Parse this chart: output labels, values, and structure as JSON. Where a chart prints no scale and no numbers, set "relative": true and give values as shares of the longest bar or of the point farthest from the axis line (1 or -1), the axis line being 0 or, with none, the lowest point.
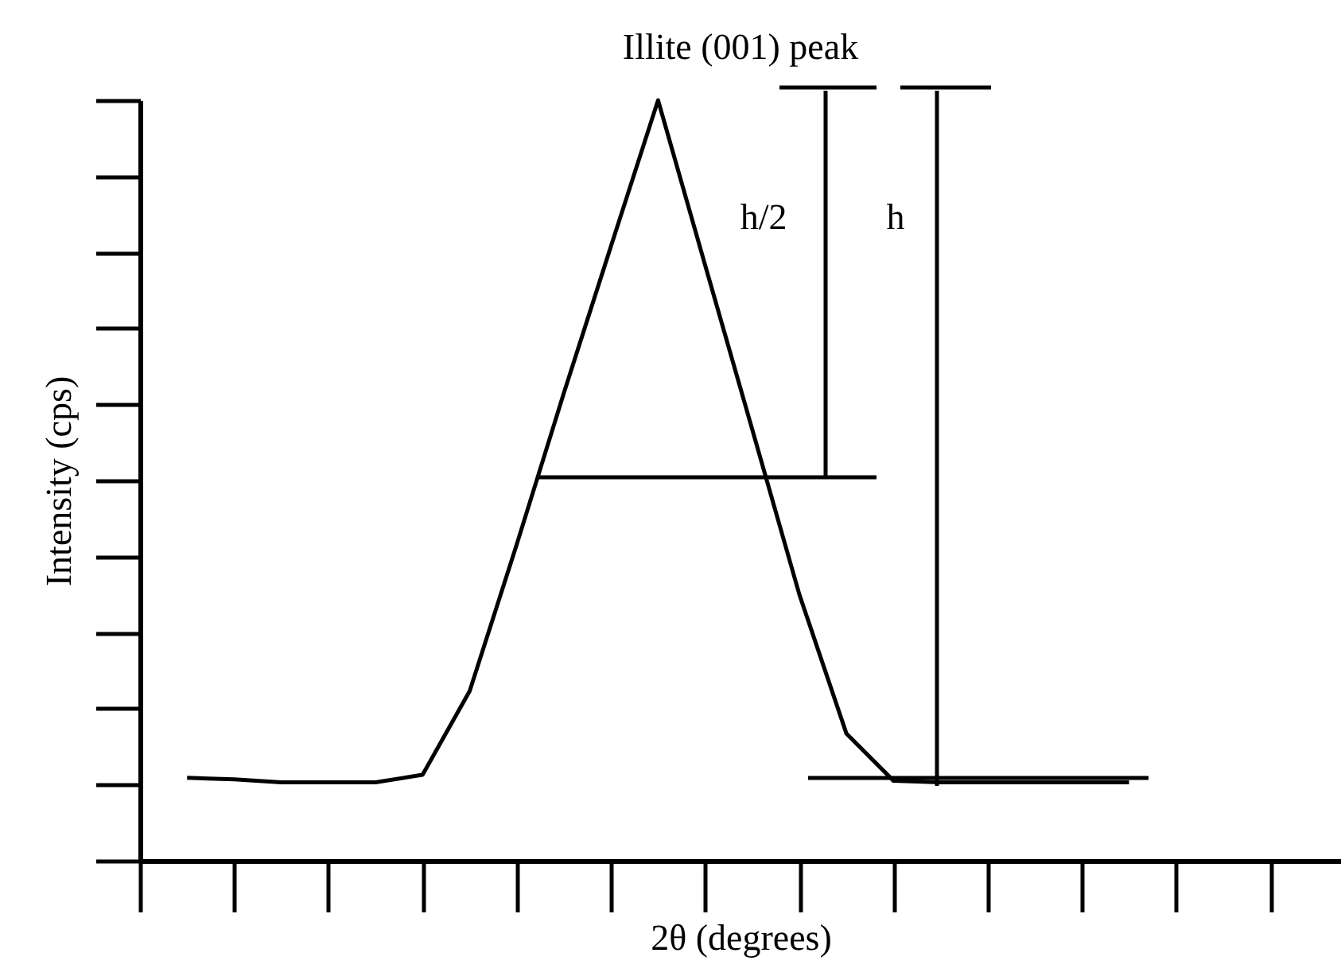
{
  "chart_data": {
    "type": "line",
    "title": "Illite (001) peak",
    "xlabel": "2θ (degrees)",
    "ylabel": "Intensity (cps)",
    "categories": [
      null,
      null,
      null,
      null,
      null,
      null,
      null,
      null,
      null,
      null,
      null,
      null,
      null,
      null,
      null,
      null,
      null,
      null,
      null,
      null,
      null
    ],
    "series": [
      {
        "color": "#000000",
        "values": [
          0.109,
          0.107,
          0.103,
          0.103,
          0.103,
          0.113,
          0.223,
          0.416,
          0.615,
          0.808,
          1.0,
          0.783,
          0.567,
          0.35,
          0.167,
          0.105,
          0.103,
          0.103,
          0.103,
          0.103,
          0.103
        ]
      }
    ],
    "relative": true,
    "annotations": [
      "h/2",
      "h"
    ]
  }
}
